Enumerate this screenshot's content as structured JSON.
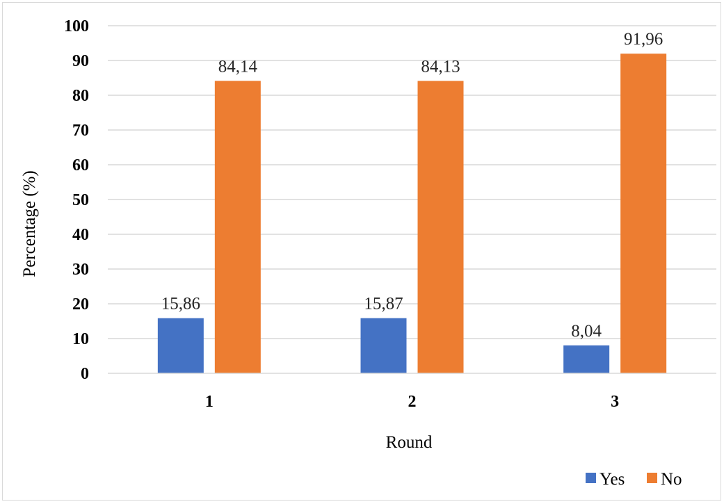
{
  "chart_data": {
    "type": "bar",
    "categories": [
      "1",
      "2",
      "3"
    ],
    "series": [
      {
        "name": "Yes",
        "values": [
          15.86,
          15.87,
          8.04
        ],
        "labels": [
          "15,86",
          "15,87",
          "8,04"
        ],
        "color": "#4472C4"
      },
      {
        "name": "No",
        "values": [
          84.14,
          84.13,
          91.96
        ],
        "labels": [
          "84,14",
          "84,13",
          "91,96"
        ],
        "color": "#ED7D31"
      }
    ],
    "xlabel": "Round",
    "ylabel": "Percentage (%)",
    "ylim": [
      0,
      100
    ],
    "yticks": [
      0,
      10,
      20,
      30,
      40,
      50,
      60,
      70,
      80,
      90,
      100
    ],
    "grid": true,
    "legend_position": "bottom-right"
  }
}
